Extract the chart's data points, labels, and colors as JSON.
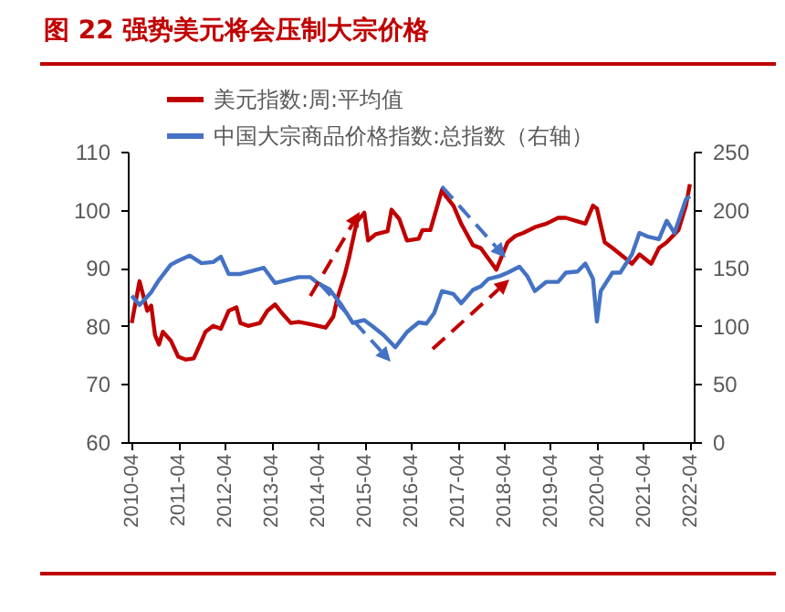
{
  "chart_data": {
    "type": "line",
    "title": "图 22 强势美元将会压制大宗价格",
    "legend": "top",
    "grid": false,
    "xlim": [
      "2010-03",
      "2022-05"
    ],
    "xticks": [
      "2010-04",
      "2011-04",
      "2012-04",
      "2013-04",
      "2014-04",
      "2015-04",
      "2016-04",
      "2017-04",
      "2018-04",
      "2019-04",
      "2020-04",
      "2021-04",
      "2022-04"
    ],
    "ylim": [
      60,
      110
    ],
    "yticks": [
      60,
      70,
      80,
      90,
      100,
      110
    ],
    "y2lim": [
      0,
      250
    ],
    "y2ticks": [
      0,
      50,
      100,
      150,
      200,
      250
    ],
    "series": [
      {
        "name": "美元指数:周:平均值",
        "color": "#c00000",
        "x": [
          "2010-04",
          "2010-06",
          "2010-08",
          "2010-09",
          "2010-10",
          "2010-11",
          "2010-12",
          "2011-02",
          "2011-04",
          "2011-06",
          "2011-08",
          "2011-10",
          "2011-11",
          "2012-01",
          "2012-03",
          "2012-05",
          "2012-07",
          "2012-08",
          "2012-10",
          "2013-01",
          "2013-03",
          "2013-05",
          "2013-07",
          "2013-09",
          "2013-11",
          "2014-02",
          "2014-06",
          "2014-08",
          "2014-09",
          "2014-11",
          "2014-12",
          "2015-02",
          "2015-04",
          "2015-05",
          "2015-07",
          "2015-10",
          "2015-11",
          "2016-01",
          "2016-03",
          "2016-06",
          "2016-07",
          "2016-09",
          "2016-12",
          "2017-01",
          "2017-03",
          "2017-05",
          "2017-08",
          "2017-10",
          "2018-02",
          "2018-05",
          "2018-07",
          "2018-09",
          "2018-12",
          "2019-03",
          "2019-06",
          "2019-08",
          "2019-11",
          "2020-01",
          "2020-03",
          "2020-04",
          "2020-06",
          "2020-08",
          "2020-11",
          "2021-01",
          "2021-03",
          "2021-06",
          "2021-08",
          "2021-10",
          "2022-01",
          "2022-03",
          "2022-04"
        ],
        "values": [
          80.5,
          87.7,
          82.6,
          83.5,
          78.4,
          76.8,
          79,
          77.5,
          74.7,
          74.2,
          74.4,
          77.4,
          79,
          80,
          79.5,
          82.6,
          83.2,
          80.5,
          80,
          80.5,
          82.6,
          83.7,
          82,
          80.5,
          80.7,
          80.3,
          79.7,
          81.6,
          84.7,
          89,
          91.6,
          97.9,
          99.5,
          94.7,
          95.8,
          96.3,
          100,
          98.4,
          94.7,
          95,
          96.5,
          96.5,
          103.4,
          102.3,
          100.7,
          97.6,
          93.9,
          93.4,
          89.7,
          94.4,
          95.5,
          96,
          97,
          97.6,
          98.6,
          98.6,
          98,
          97.6,
          100.7,
          100.2,
          94.4,
          93.4,
          91.8,
          90.7,
          92.3,
          90.7,
          93.4,
          94.4,
          96.5,
          100.7,
          104.4
        ]
      },
      {
        "name": "中国大宗商品价格指数:总指数（右轴）",
        "color": "#4472c4",
        "axis": "y2",
        "x": [
          "2010-04",
          "2010-06",
          "2010-09",
          "2010-11",
          "2011-02",
          "2011-04",
          "2011-07",
          "2011-10",
          "2012-01",
          "2012-03",
          "2012-05",
          "2012-08",
          "2012-11",
          "2013-02",
          "2013-05",
          "2013-08",
          "2013-11",
          "2014-02",
          "2014-04",
          "2014-07",
          "2014-10",
          "2015-01",
          "2015-04",
          "2015-06",
          "2015-09",
          "2015-12",
          "2016-03",
          "2016-06",
          "2016-08",
          "2016-10",
          "2016-12",
          "2017-03",
          "2017-05",
          "2017-08",
          "2017-10",
          "2017-12",
          "2018-03",
          "2018-05",
          "2018-08",
          "2018-10",
          "2018-12",
          "2019-03",
          "2019-06",
          "2019-08",
          "2019-11",
          "2020-01",
          "2020-03",
          "2020-04",
          "2020-05",
          "2020-08",
          "2020-10",
          "2021-01",
          "2021-03",
          "2021-05",
          "2021-08",
          "2021-10",
          "2021-12",
          "2022-03",
          "2022-04"
        ],
        "values": [
          126,
          118,
          129,
          139.5,
          152.6,
          156,
          160.5,
          154,
          155,
          159.5,
          144.7,
          144.7,
          147.4,
          150,
          136.8,
          139.5,
          142,
          142,
          136.8,
          131.6,
          118.4,
          102.6,
          105,
          100,
          92,
          81.6,
          94.7,
          103,
          102,
          111,
          130,
          127.4,
          119.5,
          131,
          134,
          140.5,
          143,
          145.8,
          151,
          143,
          130,
          137.9,
          137.9,
          145.8,
          146.8,
          153.7,
          140.5,
          103.7,
          130,
          145.8,
          145.8,
          161.6,
          180,
          177,
          174.7,
          190.5,
          180,
          209,
          211.6
        ]
      }
    ]
  }
}
